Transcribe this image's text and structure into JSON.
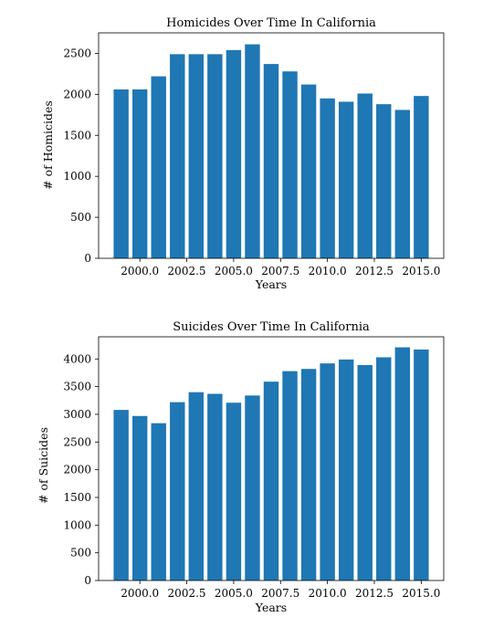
{
  "chart_data": [
    {
      "type": "bar",
      "title": "Homicides Over Time In California",
      "xlabel": "Years",
      "ylabel": "# of Homicides",
      "x": [
        1999,
        2000,
        2001,
        2002,
        2003,
        2004,
        2005,
        2006,
        2007,
        2008,
        2009,
        2010,
        2011,
        2012,
        2013,
        2014,
        2015
      ],
      "values": [
        2060,
        2060,
        2220,
        2490,
        2490,
        2490,
        2540,
        2610,
        2370,
        2280,
        2120,
        1950,
        1910,
        2010,
        1880,
        1810,
        1980
      ],
      "xlim": [
        1997.8,
        2016.2
      ],
      "ylim": [
        0,
        2750
      ],
      "xticks": [
        2000.0,
        2002.5,
        2005.0,
        2007.5,
        2010.0,
        2012.5,
        2015.0
      ],
      "xtick_labels": [
        "2000.0",
        "2002.5",
        "2005.0",
        "2007.5",
        "2010.0",
        "2012.5",
        "2015.0"
      ],
      "yticks": [
        0,
        500,
        1000,
        1500,
        2000,
        2500
      ],
      "ytick_labels": [
        "0",
        "500",
        "1000",
        "1500",
        "2000",
        "2500"
      ],
      "grid": false,
      "legend": "none",
      "bar_color": "#1f77b4"
    },
    {
      "type": "bar",
      "title": "Suicides Over Time In California",
      "xlabel": "Years",
      "ylabel": "# of Suicides",
      "x": [
        1999,
        2000,
        2001,
        2002,
        2003,
        2004,
        2005,
        2006,
        2007,
        2008,
        2009,
        2010,
        2011,
        2012,
        2013,
        2014,
        2015
      ],
      "values": [
        3080,
        2970,
        2840,
        3220,
        3400,
        3370,
        3210,
        3340,
        3590,
        3780,
        3820,
        3920,
        3990,
        3890,
        4030,
        4210,
        4170
      ],
      "xlim": [
        1997.8,
        2016.2
      ],
      "ylim": [
        0,
        4400
      ],
      "xticks": [
        2000.0,
        2002.5,
        2005.0,
        2007.5,
        2010.0,
        2012.5,
        2015.0
      ],
      "xtick_labels": [
        "2000.0",
        "2002.5",
        "2005.0",
        "2007.5",
        "2010.0",
        "2012.5",
        "2015.0"
      ],
      "yticks": [
        0,
        500,
        1000,
        1500,
        2000,
        2500,
        3000,
        3500,
        4000
      ],
      "ytick_labels": [
        "0",
        "500",
        "1000",
        "1500",
        "2000",
        "2500",
        "3000",
        "3500",
        "4000"
      ],
      "grid": false,
      "legend": "none",
      "bar_color": "#1f77b4"
    }
  ]
}
